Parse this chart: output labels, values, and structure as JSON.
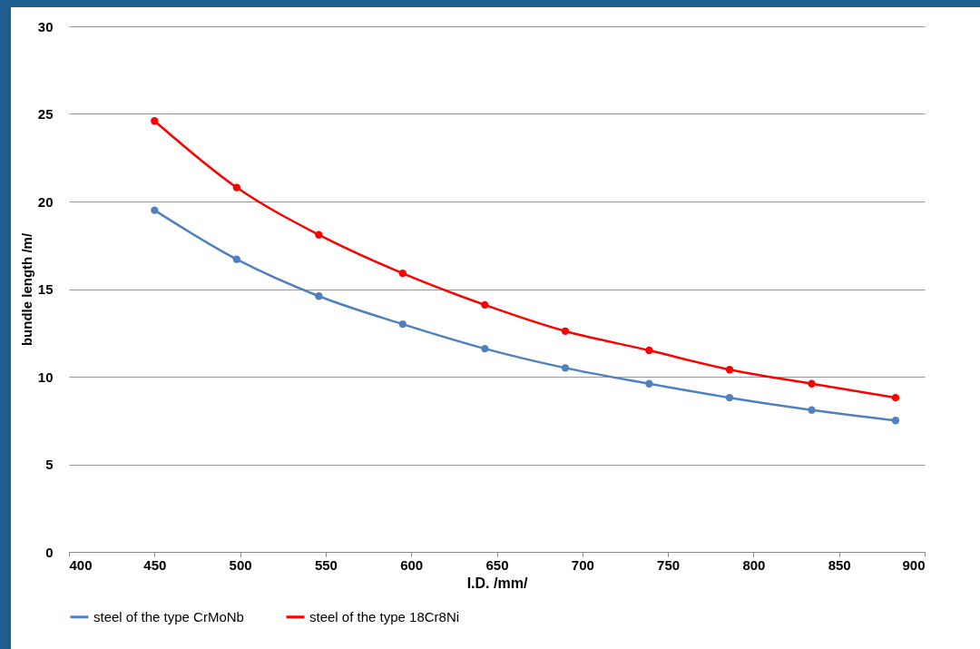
{
  "chart_data": {
    "type": "line",
    "xlabel": "I.D. /mm/",
    "ylabel": "bundle length  /m/",
    "xlim": [
      400,
      900
    ],
    "xticks": [
      400,
      450,
      500,
      550,
      600,
      650,
      700,
      750,
      800,
      850,
      900
    ],
    "ylim": [
      0,
      30
    ],
    "yticks": [
      0,
      5,
      10,
      15,
      20,
      25,
      30
    ],
    "x": [
      450,
      498,
      546,
      595,
      643,
      690,
      739,
      786,
      834,
      883
    ],
    "series": [
      {
        "name": "steel of the type CrMoNb",
        "color": "#4f81bd",
        "values": [
          19.5,
          16.7,
          14.6,
          13.0,
          11.6,
          10.5,
          9.6,
          8.8,
          8.1,
          7.5
        ]
      },
      {
        "name": "steel of the type 18Cr8Ni",
        "color": "#ff0000",
        "values": [
          24.6,
          20.8,
          18.1,
          15.9,
          14.1,
          12.6,
          11.5,
          10.4,
          9.6,
          8.8
        ]
      }
    ],
    "grid": "y",
    "legend": "bottom",
    "marker": "circle",
    "line_style": "solid"
  }
}
